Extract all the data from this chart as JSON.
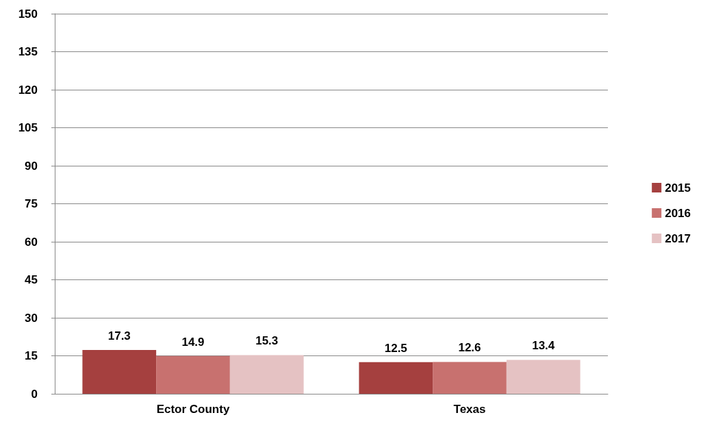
{
  "chart_data": {
    "type": "bar",
    "categories": [
      "Ector County",
      "Texas"
    ],
    "series": [
      {
        "name": "2015",
        "color": "#a5403f",
        "values": [
          17.3,
          12.5
        ]
      },
      {
        "name": "2016",
        "color": "#c8716f",
        "values": [
          14.9,
          12.6
        ]
      },
      {
        "name": "2017",
        "color": "#e5c2c3",
        "values": [
          15.3,
          13.4
        ]
      }
    ],
    "ylim": [
      0,
      150
    ],
    "yticks": [
      0,
      15,
      30,
      45,
      60,
      75,
      90,
      105,
      120,
      135,
      150
    ],
    "grid": "y",
    "legend": "right",
    "data_labels": true
  }
}
